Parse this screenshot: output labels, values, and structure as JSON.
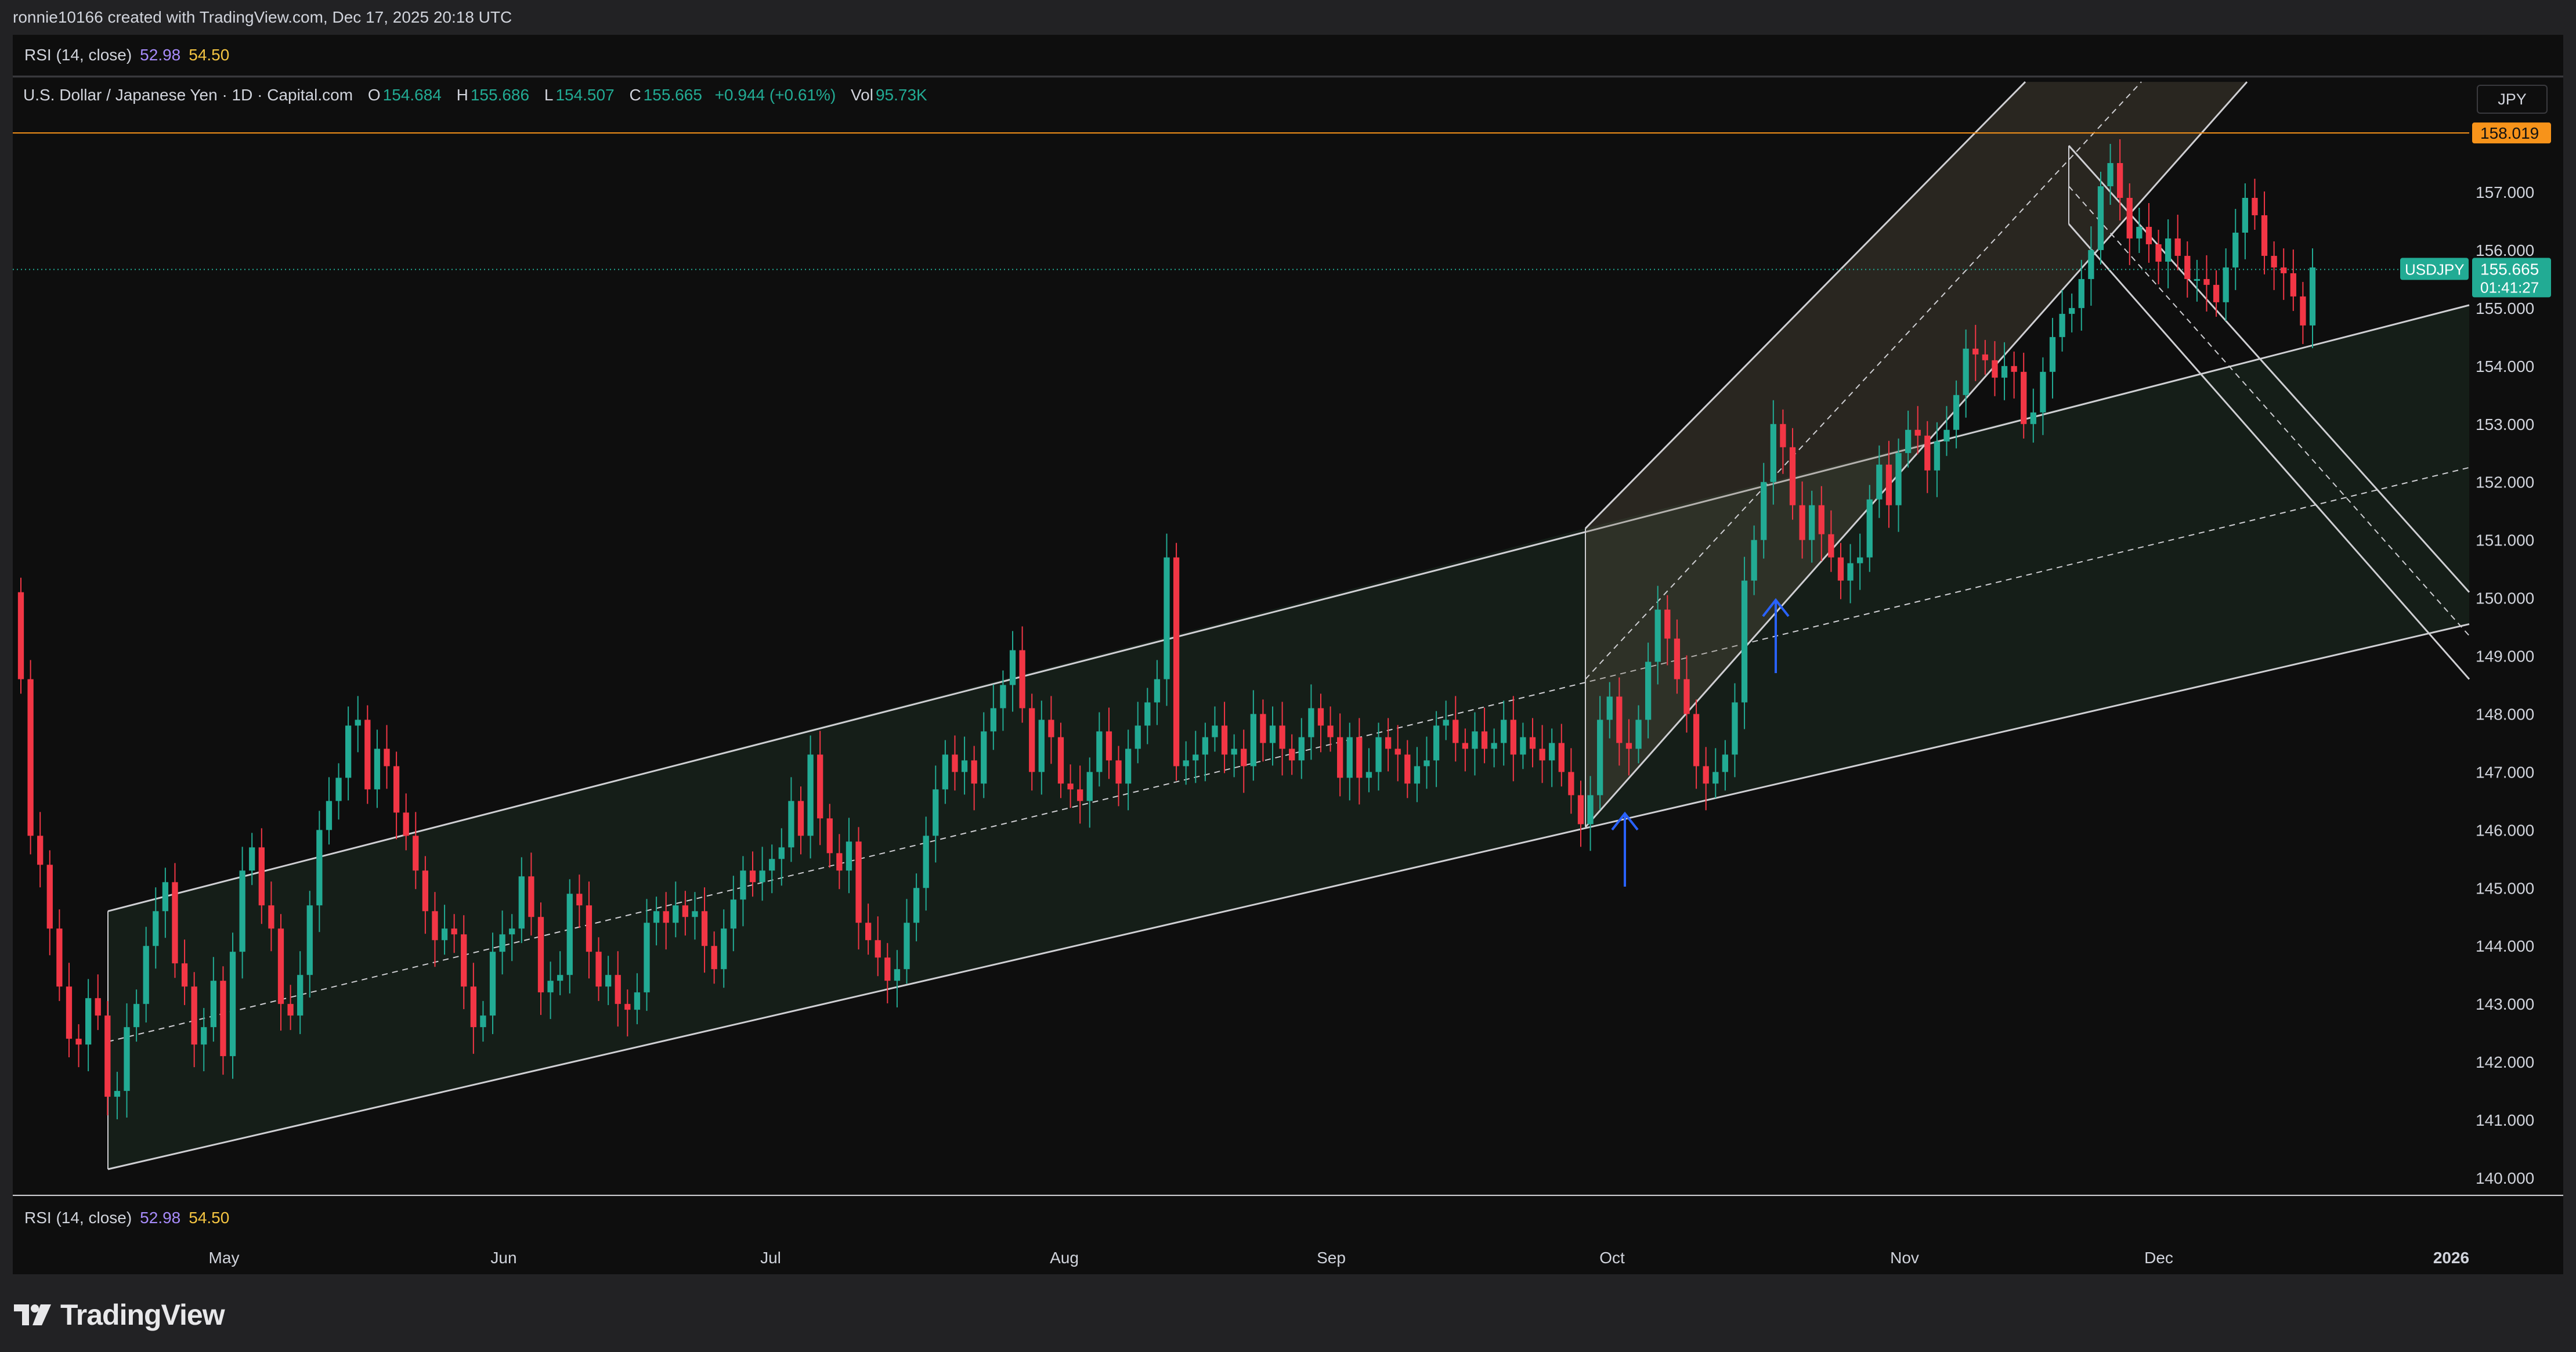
{
  "header": {
    "attribution": "ronnie10166 created with TradingView.com, Dec 17, 2025 20:18 UTC"
  },
  "rsi_top": {
    "label": "RSI (14, close)",
    "value1": "52.98",
    "value2": "54.50"
  },
  "rsi_bottom": {
    "label": "RSI (14, close)",
    "value1": "52.98",
    "value2": "54.50"
  },
  "legend": {
    "title": "U.S. Dollar / Japanese Yen · 1D · Capital.com",
    "o_label": "O",
    "o_value": "154.684",
    "h_label": "H",
    "h_value": "155.686",
    "l_label": "L",
    "l_value": "154.507",
    "c_label": "C",
    "c_value": "155.665",
    "change": "+0.944 (+0.61%)",
    "vol_label": "Vol",
    "vol_value": "95.73K"
  },
  "currency_button": "JPY",
  "brand": {
    "name": "TradingView"
  },
  "colors": {
    "up": "#22ab94",
    "down": "#f23645",
    "hline": "#f7931a",
    "background": "#0e0e0e",
    "frame": "#222224",
    "arrow": "#2962ff"
  },
  "chart_data": {
    "type": "candlestick",
    "symbol": "USDJPY",
    "timeframe": "1D",
    "y_range": [
      139.8,
      158.9
    ],
    "y_ticks": [
      "140.000",
      "141.000",
      "142.000",
      "143.000",
      "144.000",
      "145.000",
      "146.000",
      "147.000",
      "148.000",
      "149.000",
      "150.000",
      "151.000",
      "152.000",
      "153.000",
      "154.000",
      "155.000",
      "156.000",
      "157.000"
    ],
    "x_ticks": [
      "May",
      "Jun",
      "Jul",
      "Aug",
      "Sep",
      "Oct",
      "Nov",
      "Dec",
      "2026"
    ],
    "price_badges": {
      "horizontal_level": "158.019",
      "last_symbol": "USDJPY",
      "last_price": "155.665",
      "countdown": "01:41:27"
    },
    "last_price": 155.665,
    "horizontal_level": 158.019,
    "closes": [
      148.6,
      145.9,
      145.4,
      144.3,
      143.3,
      142.4,
      142.3,
      143.1,
      142.8,
      141.4,
      141.5,
      142.6,
      143.0,
      144.0,
      144.6,
      145.1,
      143.7,
      143.3,
      142.3,
      142.6,
      143.4,
      142.1,
      143.9,
      145.3,
      145.7,
      144.7,
      144.3,
      143.0,
      142.8,
      143.5,
      144.7,
      146.0,
      146.5,
      146.9,
      147.8,
      147.9,
      146.7,
      147.4,
      147.1,
      146.3,
      145.9,
      145.3,
      144.6,
      144.1,
      144.3,
      144.2,
      143.3,
      142.6,
      142.8,
      143.9,
      144.2,
      144.3,
      145.2,
      144.5,
      143.2,
      143.4,
      143.5,
      144.9,
      144.7,
      143.9,
      143.3,
      143.5,
      143.0,
      142.9,
      143.2,
      144.4,
      144.6,
      144.4,
      144.7,
      144.5,
      144.6,
      144.0,
      143.6,
      144.3,
      144.8,
      145.3,
      145.1,
      145.3,
      145.5,
      145.7,
      146.5,
      145.9,
      147.3,
      146.2,
      145.6,
      145.3,
      145.8,
      144.4,
      144.1,
      143.8,
      143.4,
      143.6,
      144.4,
      145.0,
      145.9,
      146.7,
      147.3,
      147.0,
      147.2,
      146.8,
      147.7,
      148.1,
      148.5,
      149.1,
      148.1,
      147.0,
      147.9,
      147.6,
      146.8,
      146.7,
      146.5,
      147.0,
      147.7,
      147.2,
      146.8,
      147.4,
      147.8,
      148.2,
      148.6,
      150.7,
      147.1,
      147.2,
      147.3,
      147.6,
      147.8,
      147.3,
      147.4,
      147.1,
      148.0,
      147.5,
      147.8,
      147.4,
      147.2,
      147.6,
      148.1,
      147.8,
      147.6,
      146.9,
      147.6,
      146.9,
      147.0,
      147.6,
      147.4,
      147.3,
      146.8,
      147.1,
      147.2,
      147.8,
      147.9,
      147.5,
      147.4,
      147.7,
      147.4,
      147.5,
      147.9,
      147.3,
      147.6,
      147.4,
      147.2,
      147.5,
      147.0,
      146.6,
      146.1,
      146.6,
      147.9,
      148.3,
      147.5,
      147.4,
      147.9,
      148.9,
      149.8,
      149.3,
      148.6,
      148.0,
      147.1,
      146.8,
      147.0,
      147.3,
      148.2,
      150.3,
      151.0,
      152.0,
      153.0,
      152.6,
      151.6,
      151.0,
      151.6,
      151.1,
      150.7,
      150.3,
      150.6,
      150.7,
      151.7,
      152.3,
      151.6,
      152.5,
      152.9,
      152.8,
      152.2,
      152.7,
      152.9,
      153.5,
      154.3,
      154.2,
      154.1,
      153.8,
      154.0,
      153.9,
      153.0,
      153.2,
      153.9,
      154.5,
      154.9,
      155.0,
      155.5,
      156.0,
      157.1,
      157.5,
      156.9,
      156.2,
      156.4,
      156.1,
      155.8,
      156.2,
      155.9,
      155.5,
      155.5,
      155.4,
      155.1,
      155.7,
      156.3,
      156.9,
      156.6,
      155.9,
      155.7,
      155.6,
      155.2,
      154.7,
      155.7
    ],
    "x_date_ticks_positions_note": "",
    "drawings": [
      {
        "kind": "parallel-channel",
        "name": "main-rising-channel"
      },
      {
        "kind": "parallel-channel",
        "name": "steep-rising-channel"
      },
      {
        "kind": "parallel-channel",
        "name": "falling-channel"
      },
      {
        "kind": "arrow",
        "name": "up-arrow-1"
      },
      {
        "kind": "arrow",
        "name": "up-arrow-2"
      }
    ]
  }
}
